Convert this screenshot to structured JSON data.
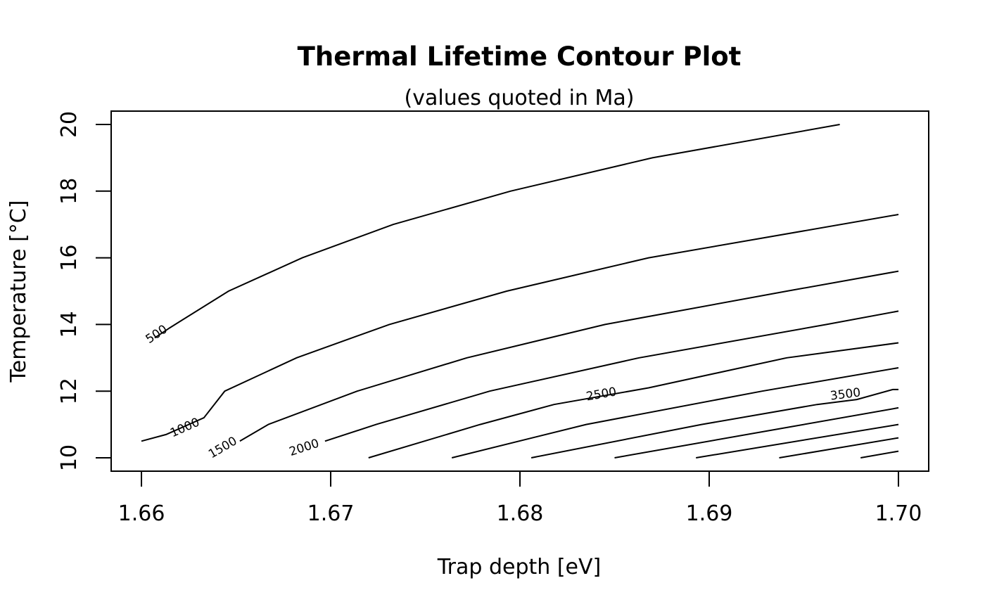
{
  "chart_data": {
    "type": "line",
    "title": "Thermal Lifetime Contour Plot",
    "subtitle": "(values quoted in Ma)",
    "xlabel": "Trap depth [eV]",
    "ylabel": "Temperature [°C]",
    "xlim": [
      1.6584,
      1.7016
    ],
    "ylim": [
      9.6,
      20.4
    ],
    "x_ticks": [
      1.66,
      1.67,
      1.68,
      1.69,
      1.7
    ],
    "x_tick_labels": [
      "1.66",
      "1.67",
      "1.68",
      "1.69",
      "1.70"
    ],
    "y_ticks": [
      10,
      12,
      14,
      16,
      18,
      20
    ],
    "y_tick_labels": [
      "10",
      "12",
      "14",
      "16",
      "18",
      "20"
    ],
    "grid": false,
    "contours": [
      {
        "level": "500",
        "label_at": [
          1.6608,
          13.7
        ],
        "points": [
          [
            1.6607,
            13.6
          ],
          [
            1.6615,
            13.9
          ],
          [
            1.6646,
            15.0
          ],
          [
            1.6685,
            16.0
          ],
          [
            1.6733,
            17.0
          ],
          [
            1.6795,
            18.0
          ],
          [
            1.687,
            19.0
          ],
          [
            1.6969,
            20.0
          ]
        ]
      },
      {
        "level": "1000",
        "label_at": [
          1.6623,
          10.9
        ],
        "points": [
          [
            1.66,
            10.5
          ],
          [
            1.6613,
            10.7
          ],
          [
            1.6633,
            11.2
          ],
          [
            1.6644,
            12.0
          ],
          [
            1.6682,
            13.0
          ],
          [
            1.6731,
            14.0
          ],
          [
            1.6793,
            15.0
          ],
          [
            1.6868,
            16.0
          ],
          [
            1.7,
            17.3
          ]
        ]
      },
      {
        "level": "1500",
        "label_at": [
          1.6643,
          10.3
        ],
        "points": [
          [
            1.6652,
            10.5
          ],
          [
            1.6667,
            11.0
          ],
          [
            1.6714,
            12.0
          ],
          [
            1.6772,
            13.0
          ],
          [
            1.6845,
            14.0
          ],
          [
            1.6941,
            15.0
          ],
          [
            1.7,
            15.6
          ]
        ]
      },
      {
        "level": "2000",
        "label_at": [
          1.6686,
          10.3
        ],
        "points": [
          [
            1.6697,
            10.5
          ],
          [
            1.6724,
            11.0
          ],
          [
            1.6784,
            12.0
          ],
          [
            1.6863,
            13.0
          ],
          [
            1.6962,
            14.0
          ],
          [
            1.7,
            14.4
          ]
        ]
      },
      {
        "level": "2500",
        "label_at": [
          1.6843,
          11.9
        ],
        "points": [
          [
            1.672,
            10.0
          ],
          [
            1.6779,
            11.0
          ],
          [
            1.6818,
            11.6
          ],
          [
            1.6868,
            12.1
          ],
          [
            1.6941,
            13.0
          ],
          [
            1.7,
            13.45
          ]
        ]
      },
      {
        "level": "",
        "label_at": null,
        "points": [
          [
            1.6764,
            10.0
          ],
          [
            1.6835,
            11.0
          ],
          [
            1.6928,
            12.0
          ],
          [
            1.7,
            12.7
          ]
        ]
      },
      {
        "level": "3500",
        "label_at": [
          1.6972,
          11.9
        ],
        "points": [
          [
            1.6806,
            10.0
          ],
          [
            1.6896,
            11.0
          ],
          [
            1.6957,
            11.6
          ],
          [
            1.6978,
            11.75
          ],
          [
            1.6997,
            12.05
          ],
          [
            1.7,
            12.05
          ]
        ]
      },
      {
        "level": "",
        "label_at": null,
        "points": [
          [
            1.685,
            10.0
          ],
          [
            1.6945,
            10.95
          ],
          [
            1.7,
            11.5
          ]
        ]
      },
      {
        "level": "",
        "label_at": null,
        "points": [
          [
            1.6893,
            10.0
          ],
          [
            1.7,
            11.0
          ]
        ]
      },
      {
        "level": "",
        "label_at": null,
        "points": [
          [
            1.6937,
            10.0
          ],
          [
            1.7,
            10.6
          ]
        ]
      },
      {
        "level": "",
        "label_at": null,
        "points": [
          [
            1.698,
            10.0
          ],
          [
            1.7,
            10.2
          ]
        ]
      }
    ]
  }
}
